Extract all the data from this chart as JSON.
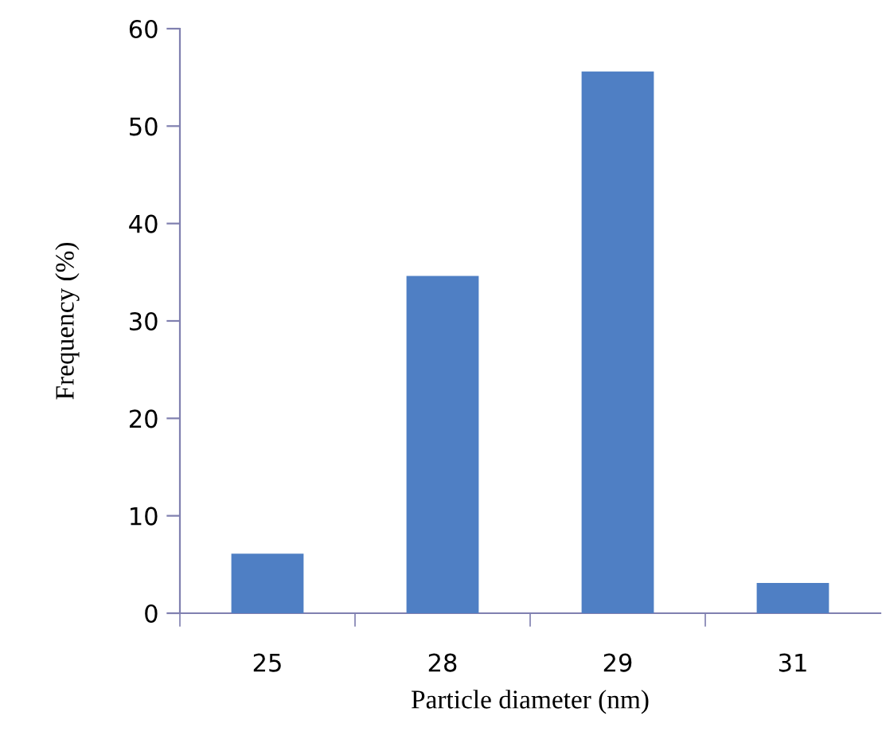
{
  "chart_data": {
    "type": "bar",
    "xlabel": "Particle diameter (nm)",
    "ylabel": "Frequency (%)",
    "categories": [
      "25",
      "28",
      "29",
      "31"
    ],
    "values": [
      6,
      34.5,
      55.5,
      3
    ],
    "color": "#4f7fc4",
    "ylim": [
      0,
      60
    ],
    "yticks": [
      0,
      10,
      20,
      30,
      40,
      50,
      60
    ],
    "grid": false,
    "legend": false
  }
}
